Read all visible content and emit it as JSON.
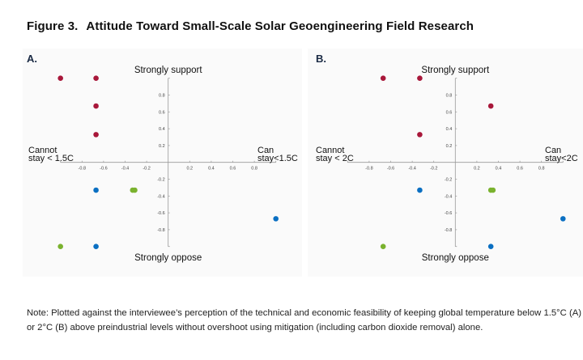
{
  "title": {
    "number": "Figure 3.",
    "text": "Attitude Toward Small-Scale Solar Geoengineering Field Research"
  },
  "note": "Note: Plotted against the interviewee’s perception of the technical and economic feasibility of keeping global temperature below 1.5°C (A) or 2°C (B) above preindustrial levels without overshoot using mitigation (including carbon dioxide removal) alone.",
  "colors": {
    "red": "#a8173a",
    "blue": "#0a6fc2",
    "green": "#7ab22e",
    "axis": "#999999"
  },
  "chart_data": [
    {
      "type": "scatter",
      "panel": "A.",
      "xlim": [
        -1,
        1
      ],
      "ylim": [
        -1,
        1
      ],
      "xticks": [
        -0.8,
        -0.6,
        -0.4,
        -0.2,
        0.2,
        0.4,
        0.6,
        0.8
      ],
      "yticks": [
        0.8,
        0.6,
        0.4,
        0.2,
        -0.2,
        -0.4,
        -0.6,
        -0.8
      ],
      "top_label": "Strongly support",
      "bottom_label": "Strongly oppose",
      "left_label": [
        "Cannot",
        "stay < 1.5C"
      ],
      "right_label": [
        "Can",
        "stay<1.5C"
      ],
      "series": [
        {
          "name": "red",
          "color": "#a8173a",
          "points": [
            [
              -1,
              1
            ],
            [
              -0.67,
              1
            ],
            [
              -0.67,
              0.67
            ],
            [
              -0.67,
              0.33
            ]
          ]
        },
        {
          "name": "blue",
          "color": "#0a6fc2",
          "points": [
            [
              -0.67,
              -0.33
            ],
            [
              1,
              -0.67
            ],
            [
              -0.67,
              -1
            ]
          ]
        },
        {
          "name": "green",
          "color": "#7ab22e",
          "points": [
            [
              -0.33,
              -0.33
            ],
            [
              -0.31,
              -0.33
            ],
            [
              -1,
              -1
            ]
          ]
        }
      ]
    },
    {
      "type": "scatter",
      "panel": "B.",
      "xlim": [
        -1,
        1
      ],
      "ylim": [
        -1,
        1
      ],
      "xticks": [
        -0.8,
        -0.6,
        -0.4,
        -0.2,
        0.2,
        0.4,
        0.6,
        0.8
      ],
      "yticks": [
        0.8,
        0.6,
        0.4,
        0.2,
        -0.2,
        -0.4,
        -0.6,
        -0.8
      ],
      "top_label": "Strongly support",
      "bottom_label": "Strongly oppose",
      "left_label": [
        "Cannot",
        "stay < 2C"
      ],
      "right_label": [
        "Can",
        "stay<2C"
      ],
      "series": [
        {
          "name": "red",
          "color": "#a8173a",
          "points": [
            [
              -0.67,
              1
            ],
            [
              -0.33,
              1
            ],
            [
              0.33,
              0.67
            ],
            [
              -0.33,
              0.33
            ]
          ]
        },
        {
          "name": "blue",
          "color": "#0a6fc2",
          "points": [
            [
              -0.33,
              -0.33
            ],
            [
              1,
              -0.67
            ],
            [
              0.33,
              -1
            ]
          ]
        },
        {
          "name": "green",
          "color": "#7ab22e",
          "points": [
            [
              0.33,
              -0.33
            ],
            [
              0.35,
              -0.33
            ],
            [
              -0.67,
              -1
            ]
          ]
        }
      ]
    }
  ]
}
